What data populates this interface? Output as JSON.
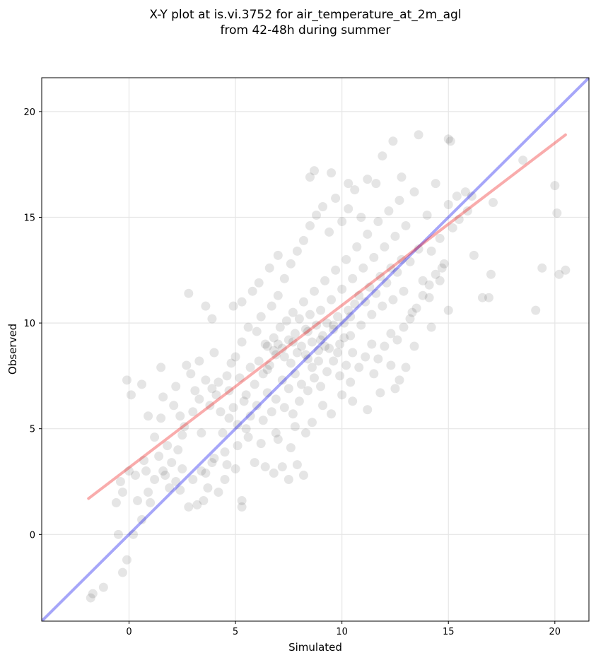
{
  "chart_data": {
    "type": "scatter",
    "title": [
      "X-Y plot at is.vi.3752 for air_temperature_at_2m_agl",
      "from 42-48h during summer"
    ],
    "xlabel": "Simulated",
    "ylabel": "Observed",
    "xlim": [
      -4.1,
      21.6
    ],
    "ylim": [
      -4.1,
      21.6
    ],
    "xticks": [
      0,
      5,
      10,
      15,
      20
    ],
    "yticks": [
      0,
      5,
      10,
      15,
      20
    ],
    "grid": true,
    "colors": {
      "points": "#000000",
      "identity_line": "#0000ee",
      "fit_line": "#ee1111",
      "grid": "#e6e6e6"
    },
    "lines": [
      {
        "kind": "identity",
        "x": [
          -4.1,
          21.6
        ],
        "y": [
          -4.1,
          21.6
        ]
      },
      {
        "kind": "fit",
        "x": [
          -1.9,
          20.5
        ],
        "y": [
          1.7,
          18.9
        ]
      }
    ],
    "points": [
      [
        -1.8,
        -3.0
      ],
      [
        -1.7,
        -2.8
      ],
      [
        -1.2,
        -2.5
      ],
      [
        -0.3,
        -1.8
      ],
      [
        -0.1,
        -1.2
      ],
      [
        -0.5,
        0.0
      ],
      [
        0.2,
        0.0
      ],
      [
        0.6,
        0.7
      ],
      [
        -0.6,
        1.5
      ],
      [
        -0.3,
        2.0
      ],
      [
        -0.4,
        2.5
      ],
      [
        0.0,
        3.0
      ],
      [
        0.3,
        2.8
      ],
      [
        0.7,
        3.5
      ],
      [
        0.9,
        2.0
      ],
      [
        0.4,
        1.6
      ],
      [
        1.0,
        1.5
      ],
      [
        1.2,
        2.6
      ],
      [
        1.6,
        3.0
      ],
      [
        1.9,
        2.2
      ],
      [
        2.2,
        2.5
      ],
      [
        2.5,
        3.1
      ],
      [
        2.8,
        1.3
      ],
      [
        3.2,
        1.4
      ],
      [
        3.5,
        1.6
      ],
      [
        3.7,
        2.2
      ],
      [
        4.2,
        2.0
      ],
      [
        4.5,
        2.6
      ],
      [
        5.3,
        1.3
      ],
      [
        5.3,
        1.6
      ],
      [
        3.4,
        3.0
      ],
      [
        3.9,
        3.4
      ],
      [
        4.5,
        3.9
      ],
      [
        5.0,
        3.1
      ],
      [
        5.9,
        3.4
      ],
      [
        6.4,
        3.2
      ],
      [
        7.2,
        3.2
      ],
      [
        7.5,
        2.6
      ],
      [
        8.2,
        2.8
      ],
      [
        7.9,
        3.3
      ],
      [
        6.8,
        2.9
      ],
      [
        7.6,
        4.1
      ],
      [
        6.9,
        4.8
      ],
      [
        8.3,
        4.8
      ],
      [
        8.6,
        5.3
      ],
      [
        9.5,
        5.7
      ],
      [
        10.0,
        6.6
      ],
      [
        11.2,
        5.9
      ],
      [
        -0.1,
        7.3
      ],
      [
        0.1,
        6.6
      ],
      [
        0.6,
        7.1
      ],
      [
        0.9,
        5.6
      ],
      [
        1.6,
        6.5
      ],
      [
        1.5,
        7.9
      ],
      [
        2.2,
        7.0
      ],
      [
        2.8,
        11.4
      ],
      [
        3.6,
        10.8
      ],
      [
        3.9,
        10.2
      ],
      [
        4.9,
        10.8
      ],
      [
        5.3,
        11.0
      ],
      [
        5.8,
        11.5
      ],
      [
        4.0,
        8.6
      ],
      [
        3.3,
        8.2
      ],
      [
        2.7,
        8.0
      ],
      [
        12.8,
        16.9
      ],
      [
        11.9,
        17.9
      ],
      [
        12.4,
        18.6
      ],
      [
        13.6,
        18.9
      ],
      [
        15.1,
        18.6
      ],
      [
        15.0,
        18.7
      ],
      [
        11.6,
        16.6
      ],
      [
        10.3,
        16.6
      ],
      [
        9.5,
        17.1
      ],
      [
        8.7,
        17.2
      ],
      [
        8.5,
        16.9
      ],
      [
        15.4,
        16.0
      ],
      [
        15.8,
        16.2
      ],
      [
        16.1,
        16.0
      ],
      [
        17.1,
        15.7
      ],
      [
        16.6,
        11.2
      ],
      [
        16.9,
        11.2
      ],
      [
        17.0,
        12.3
      ],
      [
        15.0,
        10.6
      ],
      [
        14.6,
        12.0
      ],
      [
        16.2,
        13.2
      ],
      [
        18.5,
        17.7
      ],
      [
        20.0,
        16.5
      ],
      [
        20.1,
        15.2
      ],
      [
        20.2,
        12.3
      ],
      [
        20.5,
        12.5
      ],
      [
        19.4,
        12.6
      ],
      [
        19.1,
        10.6
      ],
      [
        14.1,
        11.2
      ],
      [
        13.3,
        10.5
      ],
      [
        14.2,
        9.8
      ],
      [
        13.4,
        8.9
      ],
      [
        12.3,
        8.0
      ],
      [
        12.5,
        6.9
      ],
      [
        11.8,
        6.7
      ],
      [
        10.5,
        6.3
      ],
      [
        9.1,
        6.1
      ],
      [
        7.8,
        5.1
      ],
      [
        6.7,
        5.8
      ],
      [
        5.5,
        5.0
      ],
      [
        5.1,
        4.2
      ],
      [
        4.4,
        4.8
      ],
      [
        3.4,
        4.8
      ],
      [
        2.5,
        4.7
      ],
      [
        1.8,
        4.2
      ],
      [
        1.2,
        4.6
      ],
      [
        1.5,
        5.5
      ],
      [
        2.1,
        6.1
      ],
      [
        2.4,
        5.6
      ],
      [
        2.6,
        5.1
      ],
      [
        3.0,
        5.8
      ],
      [
        3.3,
        6.4
      ],
      [
        3.8,
        6.1
      ],
      [
        4.1,
        6.6
      ],
      [
        4.3,
        5.8
      ],
      [
        4.7,
        6.8
      ],
      [
        4.9,
        6.0
      ],
      [
        5.2,
        7.4
      ],
      [
        5.5,
        6.6
      ],
      [
        5.7,
        7.9
      ],
      [
        5.9,
        7.1
      ],
      [
        6.1,
        8.2
      ],
      [
        6.3,
        7.6
      ],
      [
        6.5,
        8.9
      ],
      [
        6.6,
        8.0
      ],
      [
        6.8,
        9.3
      ],
      [
        6.9,
        8.5
      ],
      [
        7.1,
        9.8
      ],
      [
        7.2,
        8.8
      ],
      [
        7.4,
        10.1
      ],
      [
        7.5,
        9.2
      ],
      [
        7.7,
        10.5
      ],
      [
        7.8,
        9.5
      ],
      [
        7.9,
        8.6
      ],
      [
        8.0,
        10.2
      ],
      [
        8.1,
        8.9
      ],
      [
        8.2,
        11.0
      ],
      [
        8.3,
        9.7
      ],
      [
        8.4,
        8.3
      ],
      [
        8.5,
        10.4
      ],
      [
        8.6,
        9.1
      ],
      [
        8.7,
        11.5
      ],
      [
        8.8,
        9.9
      ],
      [
        8.9,
        8.7
      ],
      [
        9.0,
        10.6
      ],
      [
        9.1,
        9.4
      ],
      [
        9.2,
        12.0
      ],
      [
        9.3,
        10.0
      ],
      [
        9.4,
        8.8
      ],
      [
        9.5,
        11.1
      ],
      [
        9.6,
        9.7
      ],
      [
        9.7,
        12.5
      ],
      [
        9.8,
        10.3
      ],
      [
        9.9,
        9.0
      ],
      [
        10.0,
        11.6
      ],
      [
        10.1,
        10.0
      ],
      [
        10.2,
        13.0
      ],
      [
        10.3,
        10.6
      ],
      [
        10.4,
        9.4
      ],
      [
        10.5,
        12.1
      ],
      [
        10.6,
        10.9
      ],
      [
        10.7,
        13.6
      ],
      [
        10.8,
        11.3
      ],
      [
        10.9,
        9.9
      ],
      [
        11.0,
        12.6
      ],
      [
        11.1,
        11.0
      ],
      [
        11.2,
        14.2
      ],
      [
        11.3,
        11.7
      ],
      [
        11.4,
        10.4
      ],
      [
        11.5,
        13.1
      ],
      [
        11.6,
        11.4
      ],
      [
        11.7,
        14.8
      ],
      [
        11.8,
        12.2
      ],
      [
        11.9,
        10.8
      ],
      [
        12.0,
        13.6
      ],
      [
        12.1,
        11.9
      ],
      [
        12.2,
        15.3
      ],
      [
        12.3,
        12.6
      ],
      [
        12.4,
        11.1
      ],
      [
        12.5,
        14.1
      ],
      [
        12.6,
        12.4
      ],
      [
        12.7,
        15.8
      ],
      [
        12.8,
        13.0
      ],
      [
        12.9,
        11.5
      ],
      [
        13.0,
        14.6
      ],
      [
        13.2,
        12.9
      ],
      [
        13.4,
        16.2
      ],
      [
        13.6,
        13.5
      ],
      [
        13.8,
        12.0
      ],
      [
        14.0,
        15.1
      ],
      [
        14.2,
        13.4
      ],
      [
        14.4,
        16.6
      ],
      [
        14.6,
        14.0
      ],
      [
        14.8,
        12.8
      ],
      [
        15.0,
        15.6
      ],
      [
        15.2,
        14.5
      ],
      [
        15.5,
        14.9
      ],
      [
        15.9,
        15.3
      ],
      [
        6.0,
        9.6
      ],
      [
        6.2,
        10.3
      ],
      [
        6.4,
        9.0
      ],
      [
        6.7,
        10.8
      ],
      [
        7.0,
        11.3
      ],
      [
        7.3,
        12.1
      ],
      [
        7.6,
        12.8
      ],
      [
        7.9,
        13.4
      ],
      [
        8.2,
        13.9
      ],
      [
        8.5,
        14.6
      ],
      [
        8.8,
        15.1
      ],
      [
        9.1,
        15.5
      ],
      [
        9.4,
        14.3
      ],
      [
        9.7,
        15.9
      ],
      [
        10.0,
        14.8
      ],
      [
        10.3,
        15.4
      ],
      [
        10.6,
        16.3
      ],
      [
        10.9,
        15.0
      ],
      [
        11.2,
        16.8
      ],
      [
        6.1,
        11.9
      ],
      [
        6.6,
        12.6
      ],
      [
        7.0,
        13.2
      ],
      [
        5.0,
        8.4
      ],
      [
        5.3,
        9.1
      ],
      [
        5.6,
        9.8
      ],
      [
        4.6,
        7.5
      ],
      [
        4.8,
        8.1
      ],
      [
        4.2,
        7.2
      ],
      [
        3.9,
        6.9
      ],
      [
        3.6,
        7.3
      ],
      [
        3.1,
        6.8
      ],
      [
        2.9,
        7.6
      ],
      [
        7.2,
        7.3
      ],
      [
        7.5,
        6.9
      ],
      [
        7.8,
        7.6
      ],
      [
        8.1,
        7.1
      ],
      [
        8.4,
        6.8
      ],
      [
        8.7,
        7.4
      ],
      [
        9.0,
        7.0
      ],
      [
        9.3,
        7.7
      ],
      [
        9.6,
        8.2
      ],
      [
        9.9,
        7.5
      ],
      [
        10.2,
        8.0
      ],
      [
        10.5,
        8.6
      ],
      [
        10.8,
        7.9
      ],
      [
        11.1,
        8.4
      ],
      [
        11.4,
        9.0
      ],
      [
        11.7,
        8.3
      ],
      [
        12.0,
        8.9
      ],
      [
        12.3,
        9.5
      ],
      [
        12.6,
        9.2
      ],
      [
        12.9,
        9.8
      ],
      [
        13.2,
        10.2
      ],
      [
        13.5,
        10.7
      ],
      [
        13.8,
        11.3
      ],
      [
        14.1,
        11.8
      ],
      [
        14.4,
        12.3
      ],
      [
        14.7,
        12.6
      ],
      [
        13.0,
        7.9
      ],
      [
        12.7,
        7.3
      ],
      [
        11.5,
        7.6
      ],
      [
        10.4,
        7.2
      ],
      [
        6.3,
        5.4
      ],
      [
        6.0,
        6.1
      ],
      [
        5.7,
        5.6
      ],
      [
        5.4,
        6.3
      ],
      [
        5.1,
        5.2
      ],
      [
        4.7,
        5.5
      ],
      [
        6.5,
        6.7
      ],
      [
        6.9,
        6.4
      ],
      [
        7.3,
        6.0
      ],
      [
        7.7,
        5.7
      ],
      [
        8.0,
        6.3
      ],
      [
        2.0,
        3.4
      ],
      [
        1.4,
        3.7
      ],
      [
        0.8,
        3.0
      ],
      [
        1.7,
        2.8
      ],
      [
        2.4,
        2.1
      ],
      [
        3.0,
        2.6
      ],
      [
        3.6,
        2.9
      ],
      [
        4.0,
        3.6
      ],
      [
        4.6,
        3.3
      ],
      [
        5.6,
        4.6
      ],
      [
        6.2,
        4.3
      ],
      [
        7.0,
        4.5
      ],
      [
        2.3,
        4.0
      ],
      [
        9.8,
        8.6
      ],
      [
        10.1,
        9.3
      ],
      [
        9.2,
        8.9
      ],
      [
        8.9,
        8.2
      ],
      [
        8.6,
        7.9
      ],
      [
        8.3,
        8.5
      ],
      [
        7.6,
        8.1
      ],
      [
        7.3,
        8.4
      ],
      [
        6.8,
        8.7
      ],
      [
        6.5,
        7.8
      ],
      [
        7.0,
        9.0
      ],
      [
        7.7,
        9.1
      ],
      [
        8.4,
        9.6
      ],
      [
        9.0,
        9.2
      ],
      [
        9.6,
        9.9
      ],
      [
        10.4,
        10.3
      ]
    ]
  }
}
